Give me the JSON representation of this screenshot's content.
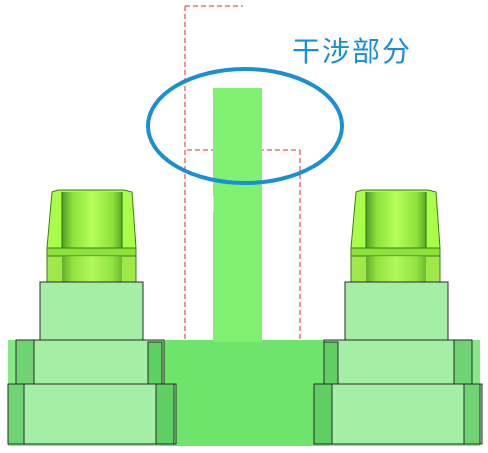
{
  "annotation": {
    "label": "干涉部分"
  },
  "colors": {
    "annotation": "#1a8fd6",
    "part_light": "#a4eea6",
    "part_mid": "#86e887",
    "part_dark": "#5fcf61",
    "part_shadow": "#3f9f44",
    "pin": "#7ff06f",
    "cap_light": "#a9ff48",
    "cap_mid": "#8ee03a",
    "cap_dark": "#4f9d24",
    "hidden_line": "#d83030",
    "outline": "#1a1a1a"
  }
}
